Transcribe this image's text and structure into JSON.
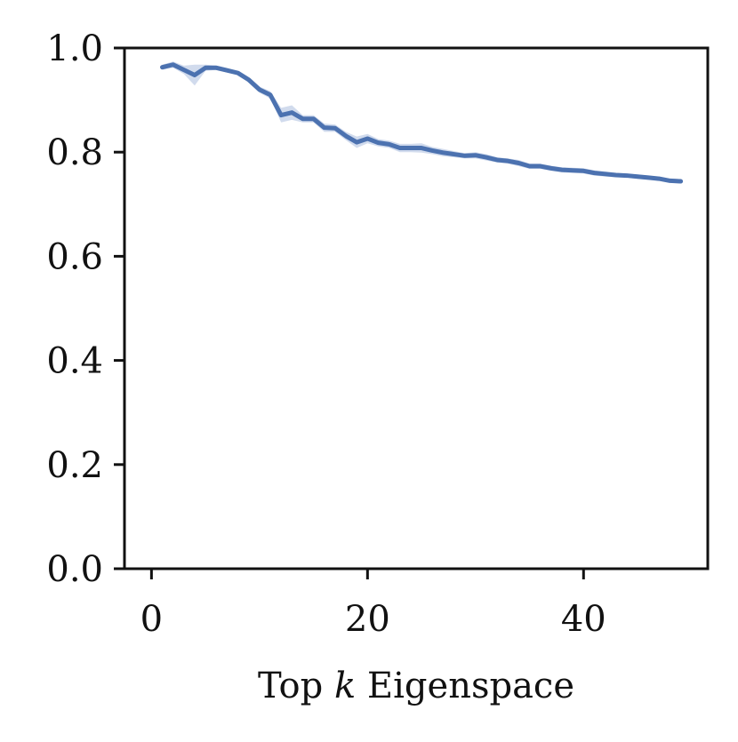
{
  "chart_data": {
    "type": "line",
    "title": "",
    "xlabel_prefix": "Top ",
    "xlabel_var": "k",
    "xlabel_suffix": " Eigenspace",
    "ylabel": "",
    "xlim": [
      -2.5,
      51.5
    ],
    "ylim": [
      0.0,
      1.0
    ],
    "xticks": [
      0,
      20,
      40
    ],
    "xtick_labels": [
      "0",
      "20",
      "40"
    ],
    "yticks": [
      0.0,
      0.2,
      0.4,
      0.6,
      0.8,
      1.0
    ],
    "ytick_labels": [
      "0.0",
      "0.2",
      "0.4",
      "0.6",
      "0.8",
      "1.0"
    ],
    "grid": false,
    "legend": false,
    "colors": {
      "line": "#4c72b0",
      "band": "#c9d5ea",
      "axes": "#111111"
    },
    "series": [
      {
        "x": [
          1,
          2,
          3,
          4,
          5,
          6,
          7,
          8,
          9,
          10,
          11,
          12,
          13,
          14,
          15,
          16,
          17,
          18,
          19,
          20,
          21,
          22,
          23,
          24,
          25,
          26,
          27,
          28,
          29,
          30,
          31,
          32,
          33,
          34,
          35,
          36,
          37,
          38,
          39,
          40,
          41,
          42,
          43,
          44,
          45,
          46,
          47,
          48,
          49
        ],
        "y": [
          0.963,
          0.968,
          0.958,
          0.948,
          0.962,
          0.962,
          0.957,
          0.952,
          0.939,
          0.92,
          0.91,
          0.871,
          0.876,
          0.864,
          0.864,
          0.847,
          0.846,
          0.831,
          0.819,
          0.826,
          0.818,
          0.815,
          0.808,
          0.808,
          0.808,
          0.803,
          0.799,
          0.796,
          0.793,
          0.794,
          0.79,
          0.785,
          0.783,
          0.779,
          0.773,
          0.773,
          0.769,
          0.766,
          0.765,
          0.764,
          0.76,
          0.758,
          0.756,
          0.755,
          0.753,
          0.751,
          0.749,
          0.745,
          0.744
        ],
        "y_lower": [
          0.958,
          0.962,
          0.95,
          0.928,
          0.956,
          0.958,
          0.953,
          0.948,
          0.934,
          0.914,
          0.903,
          0.857,
          0.862,
          0.857,
          0.857,
          0.839,
          0.839,
          0.823,
          0.808,
          0.817,
          0.811,
          0.808,
          0.8,
          0.8,
          0.799,
          0.796,
          0.792,
          0.79,
          0.788,
          0.788,
          0.784,
          0.78,
          0.778,
          0.773,
          0.768,
          0.768,
          0.764,
          0.761,
          0.76,
          0.759,
          0.755,
          0.753,
          0.752,
          0.751,
          0.749,
          0.747,
          0.745,
          0.741,
          0.74
        ],
        "y_upper": [
          0.968,
          0.974,
          0.966,
          0.968,
          0.968,
          0.966,
          0.961,
          0.956,
          0.944,
          0.926,
          0.917,
          0.885,
          0.89,
          0.871,
          0.871,
          0.855,
          0.853,
          0.839,
          0.83,
          0.835,
          0.825,
          0.822,
          0.816,
          0.816,
          0.817,
          0.81,
          0.806,
          0.802,
          0.798,
          0.8,
          0.796,
          0.79,
          0.788,
          0.785,
          0.778,
          0.778,
          0.774,
          0.771,
          0.77,
          0.769,
          0.765,
          0.763,
          0.76,
          0.759,
          0.757,
          0.755,
          0.753,
          0.749,
          0.748
        ]
      }
    ]
  }
}
